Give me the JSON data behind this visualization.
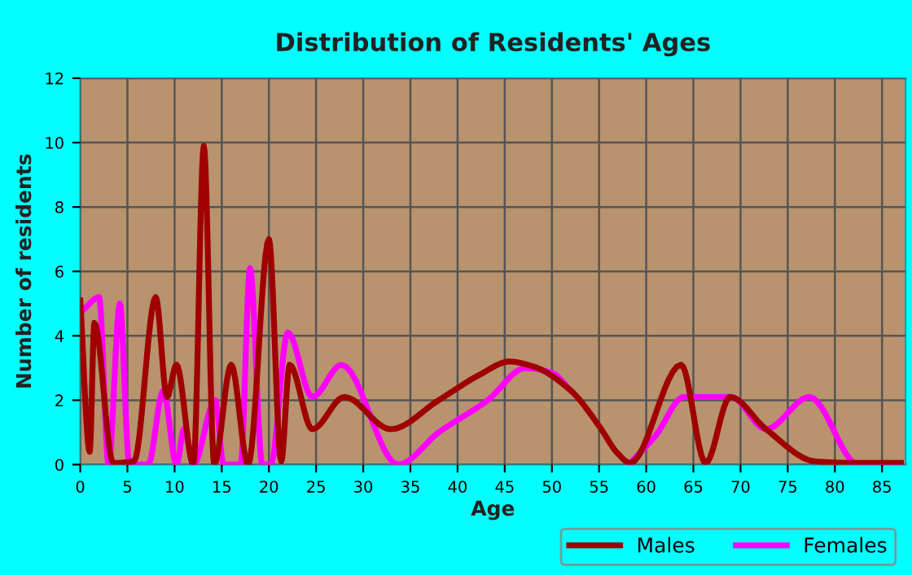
{
  "chart_data": {
    "type": "line",
    "title": "Distribution of Residents' Ages",
    "xlabel": "Age",
    "ylabel": "Number of residents",
    "xlim": [
      0,
      87.5
    ],
    "xticks": [
      0,
      5,
      10,
      15,
      20,
      25,
      30,
      35,
      40,
      45,
      50,
      55,
      60,
      65,
      70,
      75,
      80,
      85
    ],
    "ylim": [
      0,
      12
    ],
    "yticks": [
      0,
      2,
      4,
      6,
      8,
      10,
      12
    ],
    "grid": true,
    "legend": "bottom",
    "marker": "none",
    "line_style": "solid",
    "series": [
      {
        "name": "Males",
        "color": "#a00000",
        "x": [
          0,
          1,
          1.5,
          3.5,
          5.7,
          8,
          9.2,
          10.2,
          12,
          13.1,
          14.2,
          16,
          17.8,
          20,
          21.3,
          22.2,
          24.6,
          28,
          32.9,
          38,
          42.4,
          45.5,
          48,
          52,
          55,
          57,
          58.3,
          63.7,
          66.3,
          68.9,
          72.7,
          77.9,
          82,
          87
        ],
        "values": [
          5.1,
          0.4,
          4.4,
          0.05,
          0.1,
          5.2,
          2.1,
          3.1,
          0,
          9.9,
          0,
          3.1,
          0,
          7.0,
          0.1,
          3.1,
          1.1,
          2.1,
          1.1,
          2.0,
          2.8,
          3.2,
          3.05,
          2.3,
          1.2,
          0.34,
          0.05,
          3.1,
          0.05,
          2.1,
          1.1,
          0.1,
          0.05,
          0.05
        ]
      },
      {
        "name": "Females",
        "color": "#ff00ff",
        "x": [
          0.3,
          2,
          3,
          4.2,
          5.2,
          7.2,
          8.8,
          10.2,
          11,
          12,
          14.3,
          15.2,
          17,
          18,
          19.3,
          20.2,
          22,
          24.6,
          27.7,
          33.7,
          38,
          43.2,
          47.2,
          50,
          52,
          55,
          57,
          58.3,
          61,
          64,
          69,
          72.7,
          77.3,
          82.5,
          87
        ],
        "values": [
          4.8,
          5.2,
          0,
          5.0,
          0,
          0,
          2.3,
          0,
          1.1,
          0,
          2.0,
          0,
          0,
          6.1,
          0,
          0,
          4.1,
          2.1,
          3.1,
          0,
          1.0,
          2.0,
          3.0,
          2.85,
          2.3,
          null,
          null,
          0.05,
          0.9,
          2.1,
          2.1,
          1.1,
          2.1,
          0,
          0
        ]
      }
    ]
  }
}
